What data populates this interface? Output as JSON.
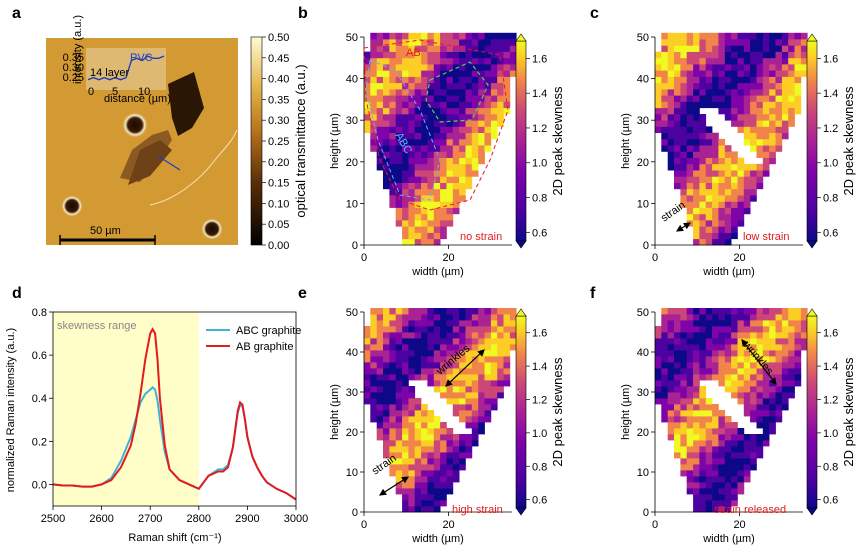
{
  "panel_labels": [
    "a",
    "b",
    "c",
    "d",
    "e",
    "f"
  ],
  "chart_data": [
    {
      "id": "a",
      "type": "heatmap",
      "description_text": {
        "inset_title": "PVC",
        "inset_layer_label": "14 layer",
        "inset_xlabel": "distance (µm)",
        "inset_ylabel": "intensity (a.u.)",
        "inset_yticks": [
          "0.35",
          "0.30",
          "0.25"
        ],
        "inset_xticks": [
          "0",
          "5",
          "10"
        ],
        "scale_bar": "50 µm"
      },
      "colorbar": {
        "label": "optical transmittance (a.u.)",
        "ticks": [
          "0.00",
          "0.05",
          "0.10",
          "0.15",
          "0.20",
          "0.25",
          "0.30",
          "0.35",
          "0.40",
          "0.45",
          "0.50"
        ],
        "range": [
          0.0,
          0.5
        ]
      },
      "inset_profile": {
        "x": [
          0,
          1,
          2,
          3,
          4,
          5,
          6,
          7,
          8,
          9,
          10,
          11,
          12,
          13,
          14
        ],
        "y": [
          0.26,
          0.27,
          0.26,
          0.27,
          0.26,
          0.27,
          0.26,
          0.27,
          0.35,
          0.36,
          0.35,
          0.37,
          0.36,
          0.36,
          0.37
        ]
      }
    },
    {
      "id": "b",
      "type": "heatmap",
      "xlabel": "width (µm)",
      "ylabel": "height (µm)",
      "xticks": [
        "0",
        "20"
      ],
      "yticks": [
        "0",
        "10",
        "20",
        "30",
        "40",
        "50"
      ],
      "xlim": [
        0,
        35
      ],
      "ylim": [
        0,
        50
      ],
      "annotations": {
        "condition": "no strain",
        "region_ab": "AB",
        "region_abc": "ABC"
      },
      "colorbar": {
        "label": "2D  peak skewness",
        "ticks": [
          "0.6",
          "0.8",
          "1.0",
          "1.2",
          "1.4",
          "1.6"
        ],
        "range": [
          0.55,
          1.7
        ]
      }
    },
    {
      "id": "c",
      "type": "heatmap",
      "xlabel": "width (µm)",
      "ylabel": "height (µm)",
      "xticks": [
        "0",
        "20"
      ],
      "yticks": [
        "0",
        "10",
        "20",
        "30",
        "40",
        "50"
      ],
      "xlim": [
        0,
        35
      ],
      "ylim": [
        0,
        50
      ],
      "annotations": {
        "condition": "low strain",
        "strain": "strain"
      },
      "colorbar": {
        "label": "2D  peak skewness",
        "ticks": [
          "0.6",
          "0.8",
          "1.0",
          "1.2",
          "1.4",
          "1.6"
        ],
        "range": [
          0.55,
          1.7
        ]
      }
    },
    {
      "id": "d",
      "type": "line",
      "xlabel": "Raman shift (cm⁻¹)",
      "ylabel": "normalized Raman intensity (a.u.)",
      "xlim": [
        2500,
        3000
      ],
      "ylim": [
        -0.1,
        0.8
      ],
      "xticks": [
        "2500",
        "2600",
        "2700",
        "2800",
        "2900",
        "3000"
      ],
      "yticks": [
        "0.0",
        "0.2",
        "0.4",
        "0.6",
        "0.8"
      ],
      "shaded_region": {
        "label": "skewness range",
        "x": [
          2500,
          2800
        ]
      },
      "legend_position": "upper-right",
      "x": [
        2500,
        2520,
        2540,
        2560,
        2580,
        2600,
        2620,
        2640,
        2660,
        2670,
        2680,
        2690,
        2700,
        2705,
        2710,
        2715,
        2720,
        2730,
        2740,
        2760,
        2780,
        2800,
        2820,
        2840,
        2850,
        2860,
        2870,
        2880,
        2885,
        2890,
        2895,
        2900,
        2910,
        2920,
        2930,
        2940,
        2960,
        2980,
        3000
      ],
      "series": [
        {
          "name": "ABC graphite",
          "color": "#3cb4dc",
          "values": [
            0.0,
            -0.005,
            -0.005,
            -0.01,
            -0.01,
            0.0,
            0.03,
            0.11,
            0.22,
            0.3,
            0.38,
            0.42,
            0.44,
            0.45,
            0.44,
            0.39,
            0.3,
            0.15,
            0.07,
            0.02,
            0.0,
            -0.02,
            0.04,
            0.07,
            0.07,
            0.09,
            0.17,
            0.33,
            0.37,
            0.36,
            0.3,
            0.22,
            0.13,
            0.08,
            0.04,
            0.01,
            -0.02,
            -0.04,
            -0.07
          ]
        },
        {
          "name": "AB graphite",
          "color": "#e41a1c",
          "values": [
            0.0,
            -0.005,
            -0.005,
            -0.01,
            -0.01,
            0.0,
            0.02,
            0.08,
            0.18,
            0.28,
            0.42,
            0.58,
            0.7,
            0.72,
            0.7,
            0.58,
            0.4,
            0.18,
            0.07,
            0.02,
            0.0,
            -0.02,
            0.04,
            0.06,
            0.06,
            0.08,
            0.17,
            0.34,
            0.38,
            0.37,
            0.3,
            0.22,
            0.13,
            0.08,
            0.04,
            0.01,
            -0.02,
            -0.04,
            -0.07
          ]
        }
      ]
    },
    {
      "id": "e",
      "type": "heatmap",
      "xlabel": "width (µm)",
      "ylabel": "height (µm)",
      "xticks": [
        "0",
        "20"
      ],
      "yticks": [
        "0",
        "10",
        "20",
        "30",
        "40",
        "50"
      ],
      "xlim": [
        0,
        35
      ],
      "ylim": [
        0,
        50
      ],
      "annotations": {
        "condition": "high strain",
        "strain": "strain",
        "wrinkles": "wrinkles"
      },
      "colorbar": {
        "label": "2D  peak skewness",
        "ticks": [
          "0.6",
          "0.8",
          "1.0",
          "1.2",
          "1.4",
          "1.6"
        ],
        "range": [
          0.55,
          1.7
        ]
      }
    },
    {
      "id": "f",
      "type": "heatmap",
      "xlabel": "width (µm)",
      "ylabel": "height (µm)",
      "xticks": [
        "0",
        "20"
      ],
      "yticks": [
        "0",
        "10",
        "20",
        "30",
        "40",
        "50"
      ],
      "xlim": [
        0,
        35
      ],
      "ylim": [
        0,
        50
      ],
      "annotations": {
        "condition": "strain released",
        "wrinkles": "wrinkles"
      },
      "colorbar": {
        "label": "2D  peak skewness",
        "ticks": [
          "0.6",
          "0.8",
          "1.0",
          "1.2",
          "1.4",
          "1.6"
        ],
        "range": [
          0.55,
          1.7
        ]
      }
    }
  ]
}
